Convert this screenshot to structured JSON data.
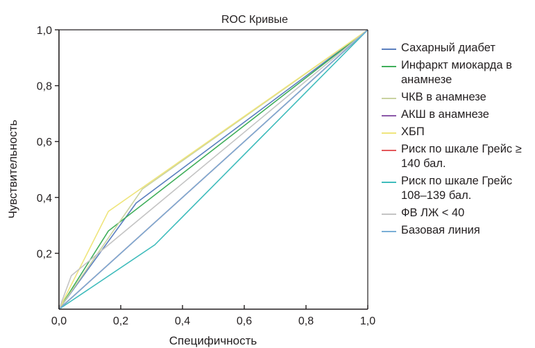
{
  "chart_data": {
    "type": "line",
    "title": "ROC  Кривые",
    "xlabel": "Специфичность",
    "ylabel": "Чувствительность",
    "xlim": [
      0,
      1
    ],
    "ylim": [
      0,
      1
    ],
    "xticks": [
      "0,0",
      "0,2",
      "0,4",
      "0,6",
      "0,8",
      "1,0"
    ],
    "yticks": [
      "0,2",
      "0,4",
      "0,6",
      "0,8",
      "1,0"
    ],
    "grid": false,
    "legend_position": "right",
    "series": [
      {
        "name": "Сахарный диабет",
        "color": "#5b7fbf",
        "x": [
          0,
          0.25,
          1
        ],
        "y": [
          0,
          0.38,
          1
        ]
      },
      {
        "name": "Инфаркт миокарда в анамнезе",
        "color": "#3fae5a",
        "x": [
          0,
          0.16,
          1
        ],
        "y": [
          0,
          0.28,
          1
        ]
      },
      {
        "name": "ЧКВ в анамнезе",
        "color": "#c9d2a0",
        "x": [
          0,
          0.27,
          1
        ],
        "y": [
          0,
          0.43,
          1
        ]
      },
      {
        "name": "АКШ в анамнезе",
        "color": "#8b58a8",
        "x": [
          0,
          1
        ],
        "y": [
          0,
          1
        ]
      },
      {
        "name": "ХБП",
        "color": "#efe57c",
        "x": [
          0,
          0.16,
          1
        ],
        "y": [
          0,
          0.35,
          1
        ]
      },
      {
        "name": "Риск по шкале Грейс ≥ 140 бал.",
        "color": "#e4585b",
        "x": [
          0,
          1
        ],
        "y": [
          0,
          1
        ]
      },
      {
        "name": "Риск по шкале Грейс 108–139 бал.",
        "color": "#3fbcbc",
        "x": [
          0,
          0.31,
          1
        ],
        "y": [
          0,
          0.23,
          1
        ]
      },
      {
        "name": "ФВ ЛЖ < 40",
        "color": "#c4c4c4",
        "x": [
          0,
          0.04,
          1
        ],
        "y": [
          0,
          0.12,
          1
        ]
      },
      {
        "name": "Базовая линия",
        "color": "#7aaed6",
        "x": [
          0,
          1
        ],
        "y": [
          0,
          1
        ]
      }
    ]
  }
}
